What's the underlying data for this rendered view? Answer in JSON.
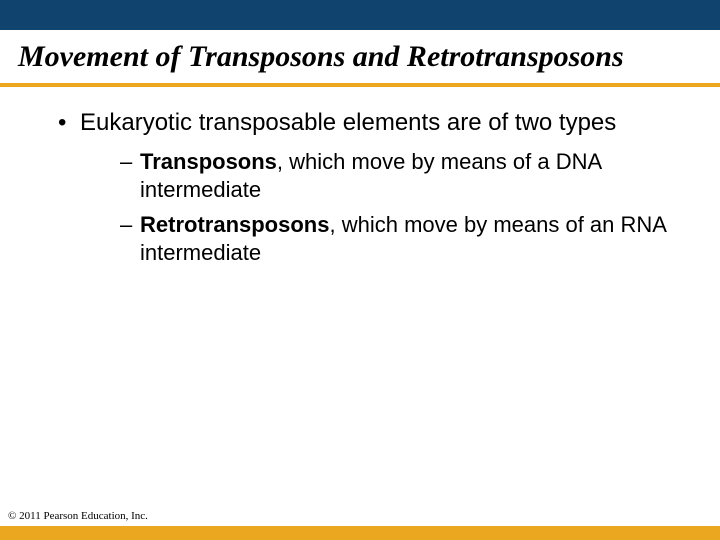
{
  "colors": {
    "top_bar": "#10446f",
    "underline": "#eca720",
    "bottom_bar": "#eca720",
    "text": "#000000",
    "background": "#ffffff"
  },
  "layout": {
    "top_bar_height": 30,
    "bottom_bar_height": 14,
    "title_fontsize": 30,
    "l1_fontsize": 24,
    "l2_fontsize": 22,
    "copyright_fontsize": 11,
    "copyright_bottom": 18
  },
  "title": "Movement of Transposons and Retrotransposons",
  "bullets": {
    "l1": "Eukaryotic transposable elements are of two types",
    "l2a_bold": "Transposons",
    "l2a_rest": ", which move by means of a DNA intermediate",
    "l2b_bold": "Retrotransposons",
    "l2b_rest": ", which move by means of an RNA intermediate"
  },
  "copyright": "© 2011 Pearson Education, Inc."
}
